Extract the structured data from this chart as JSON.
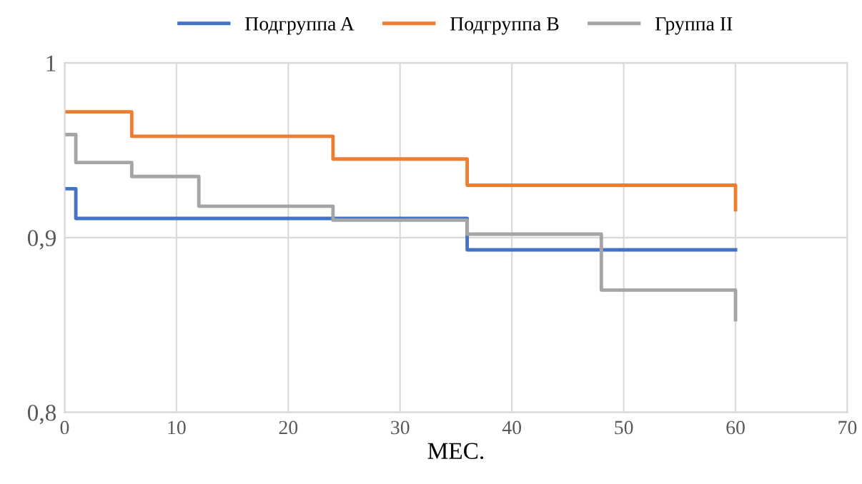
{
  "chart_data": {
    "type": "step",
    "xlabel": "МЕС.",
    "xlim": [
      0,
      70
    ],
    "xticks": [
      0,
      10,
      20,
      30,
      40,
      50,
      60,
      70
    ],
    "ylim": [
      0.8,
      1
    ],
    "yticks": [
      {
        "value": 0.8,
        "label": "0,8"
      },
      {
        "value": 0.9,
        "label": "0,9"
      },
      {
        "value": 1,
        "label": "1"
      }
    ],
    "grid": true,
    "legend": "top",
    "series": [
      {
        "name": "Подгруппа A",
        "color": "#4472c4",
        "x": [
          0,
          1,
          36,
          60
        ],
        "values": [
          0.928,
          0.911,
          0.893,
          0.893
        ]
      },
      {
        "name": "Подгруппа B",
        "color": "#ed7d31",
        "x": [
          0,
          6,
          24,
          36,
          60,
          60
        ],
        "values": [
          0.972,
          0.958,
          0.945,
          0.93,
          0.93,
          0.916
        ]
      },
      {
        "name": "Группа II",
        "color": "#a5a5a5",
        "x": [
          0,
          1,
          6,
          12,
          24,
          36,
          48,
          60,
          60
        ],
        "values": [
          0.959,
          0.943,
          0.935,
          0.918,
          0.91,
          0.902,
          0.87,
          0.87,
          0.853
        ]
      }
    ]
  }
}
